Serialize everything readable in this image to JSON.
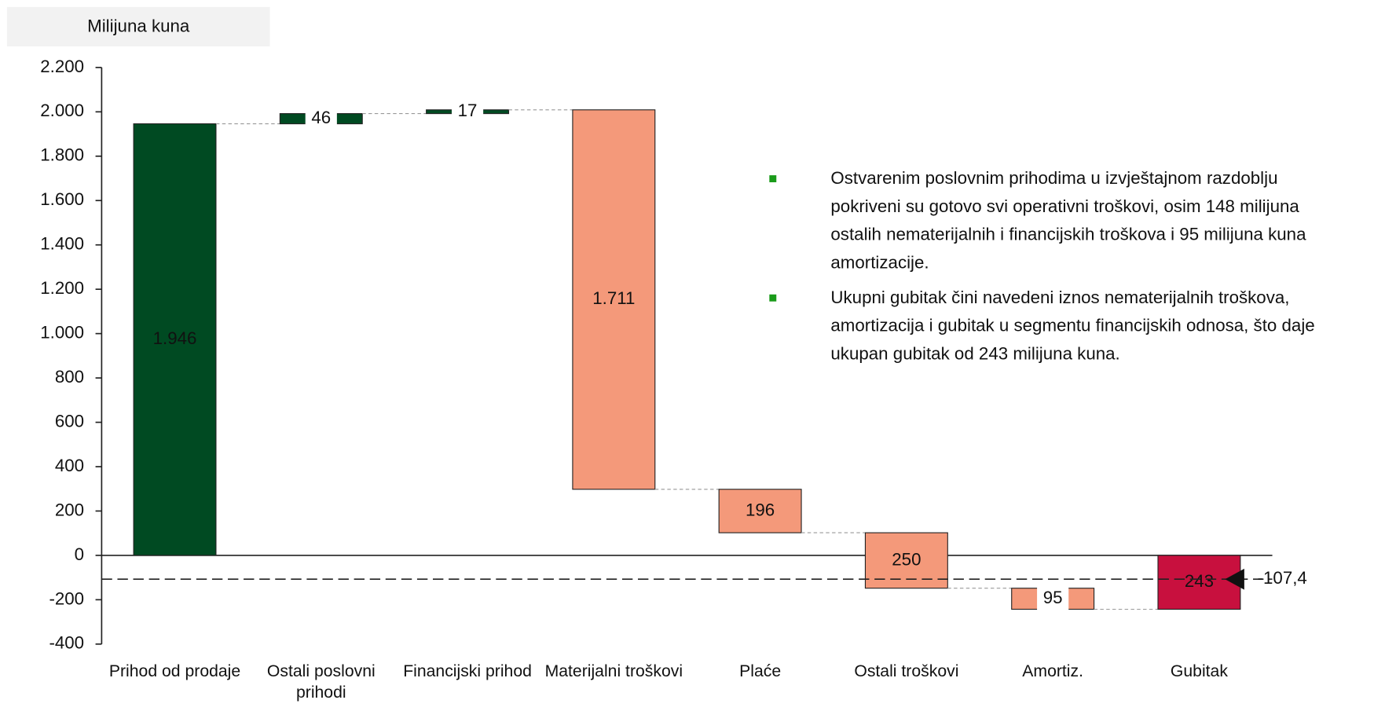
{
  "chart_data": {
    "type": "waterfall",
    "ylabel": "Milijuna kuna",
    "categories": [
      "Prihod od prodaje",
      "Ostali poslovni prihodi",
      "Financijski prihod",
      "Materijalni troškovi",
      "Plaće",
      "Ostali troškovi",
      "Amortiz.",
      "Gubitak"
    ],
    "values": [
      1946,
      46,
      17,
      -1711,
      -196,
      -250,
      -95,
      -243
    ],
    "value_labels": [
      "1.946",
      "46",
      "17",
      "1.711",
      "196",
      "250",
      "95",
      "243"
    ],
    "colors": [
      "#004a22",
      "#004a22",
      "#004a22",
      "#f4997a",
      "#f4997a",
      "#f4997a",
      "#f4997a",
      "#c8103e"
    ],
    "ylim": [
      -400,
      2200
    ],
    "yticks": [
      -400,
      -200,
      0,
      200,
      400,
      600,
      800,
      {
        "value": 1000,
        "label": "1.000"
      },
      {
        "value": 1200,
        "label": "1.200"
      },
      {
        "value": 1400,
        "label": "1.400"
      },
      {
        "value": 1600,
        "label": "1.600"
      },
      {
        "value": 1800,
        "label": "1.800"
      },
      {
        "value": 2000,
        "label": "2.000"
      },
      {
        "value": 2200,
        "label": "2.200"
      }
    ],
    "reference_line": {
      "value": -107.4,
      "label": "-107,4"
    },
    "notes": [
      "Ostvarenim poslovnim prihodima u izvještajnom razdoblju pokriveni su gotovo svi operativni troškovi, osim 148 milijuna ostalih nematerijalnih i financijskih troškova i 95 milijuna kuna amortizacije.",
      "Ukupni gubitak čini navedeni iznos nematerijalnih troškova,  amortizacija i gubitak u segmentu financijskih odnosa, što daje ukupan gubitak od 243 milijuna kuna."
    ]
  }
}
